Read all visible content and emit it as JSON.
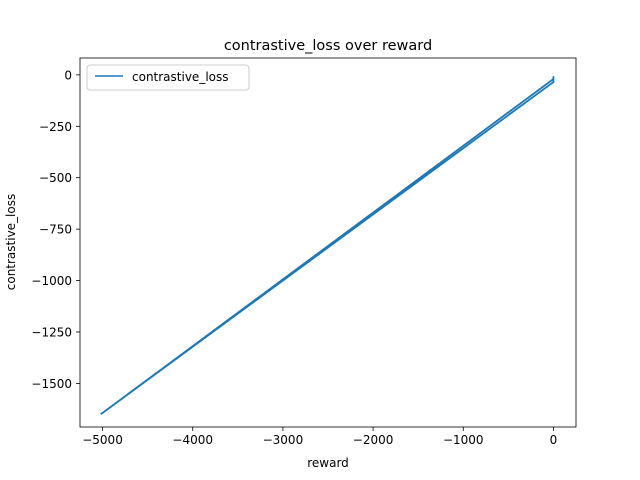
{
  "chart_data": {
    "type": "line",
    "title": "contrastive_loss over reward",
    "xlabel": "reward",
    "ylabel": "contrastive_loss",
    "xlim": [
      -5250,
      250
    ],
    "ylim": [
      -1712,
      82
    ],
    "xticks": [
      -5000,
      -4000,
      -3000,
      -2000,
      -1000,
      0
    ],
    "xtick_labels": [
      "−5000",
      "−4000",
      "−3000",
      "−2000",
      "−1000",
      "0"
    ],
    "yticks": [
      0,
      -250,
      -500,
      -750,
      -1000,
      -1250,
      -1500
    ],
    "ytick_labels": [
      "0",
      "−250",
      "−500",
      "−750",
      "−1000",
      "−1250",
      "−1500"
    ],
    "grid": false,
    "legend_position": "upper-left",
    "series": [
      {
        "name": "contrastive_loss",
        "color": "#1f77b4",
        "x": [
          -5020,
          0,
          0,
          0,
          -5020
        ],
        "y": [
          -1650,
          -20,
          -10,
          -35,
          -1650
        ]
      }
    ]
  }
}
